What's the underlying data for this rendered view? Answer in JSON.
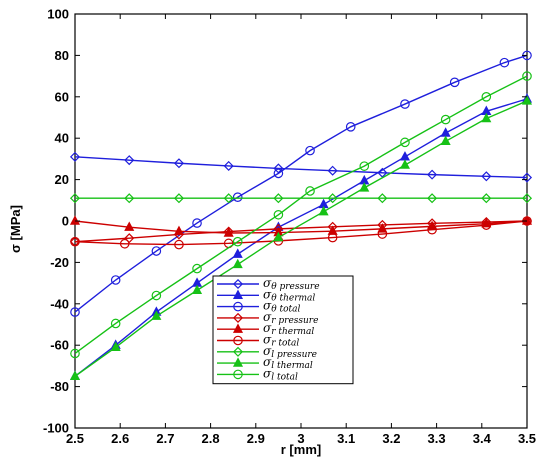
{
  "chart_data": {
    "type": "line",
    "xlabel": "r [mm]",
    "ylabel": "σ [MPa]",
    "xlim": [
      2.5,
      3.5
    ],
    "ylim": [
      -100,
      100
    ],
    "xticks": [
      "2.5",
      "2.6",
      "2.7",
      "2.8",
      "2.9",
      "3",
      "3.1",
      "3.2",
      "3.3",
      "3.4",
      "3.5"
    ],
    "yticks": [
      "-100",
      "-80",
      "-60",
      "-40",
      "-20",
      "0",
      "20",
      "40",
      "60",
      "80",
      "100"
    ],
    "grid": false,
    "legend_position": "bottom-center",
    "series": [
      {
        "symbol": "σ",
        "sub1": "θ",
        "sub2": "pressure",
        "color": "#1f1fdc",
        "marker": "diamond",
        "x": [
          2.5,
          2.62,
          2.73,
          2.84,
          2.95,
          3.07,
          3.18,
          3.29,
          3.41,
          3.5
        ],
        "y": [
          31,
          29.4,
          27.9,
          26.6,
          25.4,
          24.3,
          23.3,
          22.4,
          21.6,
          21
        ]
      },
      {
        "symbol": "σ",
        "sub1": "θ",
        "sub2": "thermal",
        "color": "#1f1fdc",
        "marker": "triangle",
        "x": [
          2.5,
          2.59,
          2.68,
          2.77,
          2.86,
          2.95,
          3.05,
          3.14,
          3.23,
          3.32,
          3.41,
          3.5
        ],
        "y": [
          -75,
          -60,
          -44,
          -30,
          -16,
          -3,
          8,
          19.5,
          31,
          42.5,
          53,
          59
        ]
      },
      {
        "symbol": "σ",
        "sub1": "θ",
        "sub2": "total",
        "color": "#1f1fdc",
        "marker": "circle",
        "x": [
          2.5,
          2.59,
          2.68,
          2.77,
          2.86,
          2.95,
          3.02,
          3.11,
          3.23,
          3.34,
          3.45,
          3.5
        ],
        "y": [
          -44,
          -28.5,
          -14.5,
          -1,
          11.5,
          23,
          34,
          45.5,
          56.5,
          67,
          76.5,
          80
        ]
      },
      {
        "symbol": "σ",
        "sub1": "r",
        "sub2": "pressure",
        "color": "#cc0000",
        "marker": "diamond",
        "x": [
          2.5,
          2.62,
          2.73,
          2.84,
          2.95,
          3.07,
          3.18,
          3.29,
          3.41,
          3.5
        ],
        "y": [
          -10,
          -8.3,
          -6.5,
          -5.1,
          -3.8,
          -2.8,
          -1.9,
          -1.1,
          -0.5,
          0
        ]
      },
      {
        "symbol": "σ",
        "sub1": "r",
        "sub2": "thermal",
        "color": "#cc0000",
        "marker": "triangle",
        "x": [
          2.5,
          2.62,
          2.73,
          2.84,
          2.95,
          3.07,
          3.18,
          3.29,
          3.41,
          3.5
        ],
        "y": [
          0,
          -3,
          -5,
          -5.8,
          -5.6,
          -4.9,
          -3.8,
          -2.6,
          -1.3,
          0
        ]
      },
      {
        "symbol": "σ",
        "sub1": "r",
        "sub2": "total",
        "color": "#cc0000",
        "marker": "circle",
        "x": [
          2.5,
          2.61,
          2.73,
          2.84,
          2.95,
          3.07,
          3.18,
          3.29,
          3.41,
          3.5
        ],
        "y": [
          -10,
          -11,
          -11.4,
          -10.8,
          -9.6,
          -8,
          -6.3,
          -4.2,
          -2,
          0
        ]
      },
      {
        "symbol": "σ",
        "sub1": "l",
        "sub2": "pressure",
        "color": "#16c116",
        "marker": "diamond",
        "x": [
          2.5,
          2.62,
          2.73,
          2.84,
          2.95,
          3.07,
          3.18,
          3.29,
          3.41,
          3.5
        ],
        "y": [
          11,
          11,
          11,
          11,
          11,
          11,
          11,
          11,
          11,
          11
        ]
      },
      {
        "symbol": "σ",
        "sub1": "l",
        "sub2": "thermal",
        "color": "#16c116",
        "marker": "triangle",
        "x": [
          2.5,
          2.59,
          2.68,
          2.77,
          2.86,
          2.95,
          3.05,
          3.14,
          3.23,
          3.32,
          3.41,
          3.5
        ],
        "y": [
          -75,
          -61,
          -46,
          -33.5,
          -21,
          -8,
          4.5,
          16,
          27,
          38.5,
          49.5,
          58
        ]
      },
      {
        "symbol": "σ",
        "sub1": "l",
        "sub2": "total",
        "color": "#16c116",
        "marker": "circle",
        "x": [
          2.5,
          2.59,
          2.68,
          2.77,
          2.86,
          2.95,
          3.02,
          3.14,
          3.23,
          3.32,
          3.41,
          3.5
        ],
        "y": [
          -64,
          -49.5,
          -36,
          -23,
          -10,
          3,
          14.5,
          26.5,
          38,
          49,
          60,
          70
        ]
      }
    ]
  }
}
